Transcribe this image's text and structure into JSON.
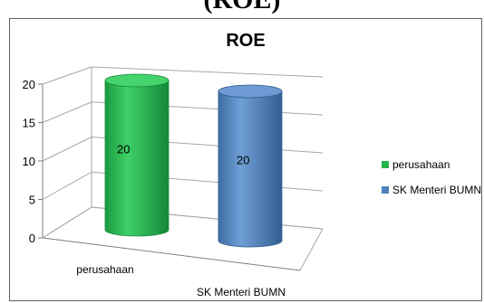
{
  "page_heading": "(ROE)",
  "chart_data": {
    "type": "bar",
    "style": "3d-cylinder",
    "title": "ROE",
    "categories": [
      "perusahaan",
      "SK Menteri BUMN"
    ],
    "series": [
      {
        "name": "perusahaan",
        "values": [
          20,
          null
        ],
        "color": "#22b34c"
      },
      {
        "name": "SK Menteri BUMN",
        "values": [
          null,
          20
        ],
        "color": "#4f81bd"
      }
    ],
    "data_labels": [
      "20",
      "20"
    ],
    "y_ticks": [
      "0",
      "5",
      "10",
      "15",
      "20"
    ],
    "ylim": [
      0,
      20
    ],
    "grid": true,
    "legend_position": "right"
  }
}
